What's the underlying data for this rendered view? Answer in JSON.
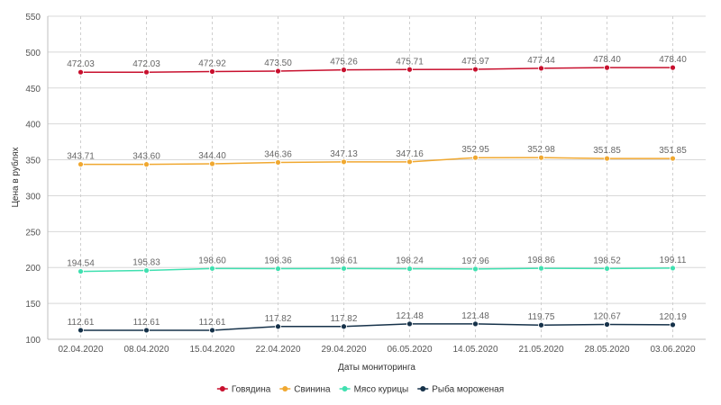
{
  "chart_data": {
    "type": "line",
    "categories": [
      "02.04.2020",
      "08.04.2020",
      "15.04.2020",
      "22.04.2020",
      "29.04.2020",
      "06.05.2020",
      "14.05.2020",
      "21.05.2020",
      "28.05.2020",
      "03.06.2020"
    ],
    "series": [
      {
        "name": "Говядина",
        "color": "#c8102e",
        "values": [
          472.03,
          472.03,
          472.92,
          473.5,
          475.26,
          475.71,
          475.97,
          477.44,
          478.4,
          478.4
        ],
        "labels": [
          "472.03",
          "472.03",
          "472.92",
          "473.50",
          "475.26",
          "475.71",
          "475.97",
          "477.44",
          "478.40",
          "478.40"
        ]
      },
      {
        "name": "Свинина",
        "color": "#f0a830",
        "values": [
          343.71,
          343.6,
          344.4,
          346.36,
          347.13,
          347.16,
          352.95,
          352.98,
          351.85,
          351.85
        ],
        "labels": [
          "343.71",
          "343.60",
          "344.40",
          "346.36",
          "347.13",
          "347.16",
          "352.95",
          "352.98",
          "351.85",
          "351.85"
        ]
      },
      {
        "name": "Мясо курицы",
        "color": "#40e0b0",
        "values": [
          194.54,
          195.83,
          198.6,
          198.36,
          198.61,
          198.24,
          197.96,
          198.86,
          198.52,
          199.11
        ],
        "labels": [
          "194.54",
          "195.83",
          "198.60",
          "198.36",
          "198.61",
          "198.24",
          "197.96",
          "198.86",
          "198.52",
          "199.11"
        ]
      },
      {
        "name": "Рыба мороженая",
        "color": "#16324a",
        "values": [
          112.61,
          112.61,
          112.61,
          117.82,
          117.82,
          121.48,
          121.48,
          119.75,
          120.67,
          120.19
        ],
        "labels": [
          "112.61",
          "112.61",
          "112.61",
          "117.82",
          "117.82",
          "121.48",
          "121.48",
          "119.75",
          "120.67",
          "120.19"
        ]
      }
    ],
    "xlabel": "Даты мониторинга",
    "ylabel": "Цена в рублях",
    "ylim": [
      100,
      550
    ],
    "yticks": [
      "100",
      "150",
      "200",
      "250",
      "300",
      "350",
      "400",
      "450",
      "500",
      "550"
    ],
    "grid": true,
    "legend_position": "bottom-center"
  }
}
